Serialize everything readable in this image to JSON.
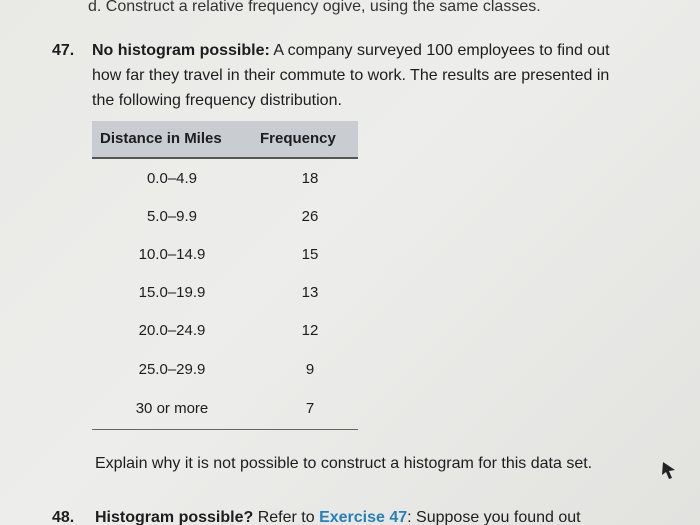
{
  "header": {
    "text": "d. Construct a relative frequency ogive, using the same classes."
  },
  "exercise_47": {
    "number": "47.",
    "title": "No histogram possible:",
    "text": "A company surveyed 100 employees to find out how far they travel in their commute to work. The results are presented in the following frequency distribution.",
    "table": {
      "columns": [
        "Distance in Miles",
        "Frequency"
      ],
      "rows": [
        [
          "0.0–4.9",
          18
        ],
        [
          "5.0–9.9",
          26
        ],
        [
          "10.0–14.9",
          15
        ],
        [
          "15.0–19.9",
          13
        ],
        [
          "20.0–24.9",
          12
        ],
        [
          "25.0–29.9",
          9
        ],
        [
          "30 or more",
          7
        ]
      ]
    },
    "question": "Explain why it is not possible to construct a histogram for this data set."
  },
  "exercise_48": {
    "number": "48.",
    "title": "Histogram possible?",
    "text_before": "Refer to",
    "link": "Exercise 47",
    "text_after": ": Suppose you found out"
  }
}
